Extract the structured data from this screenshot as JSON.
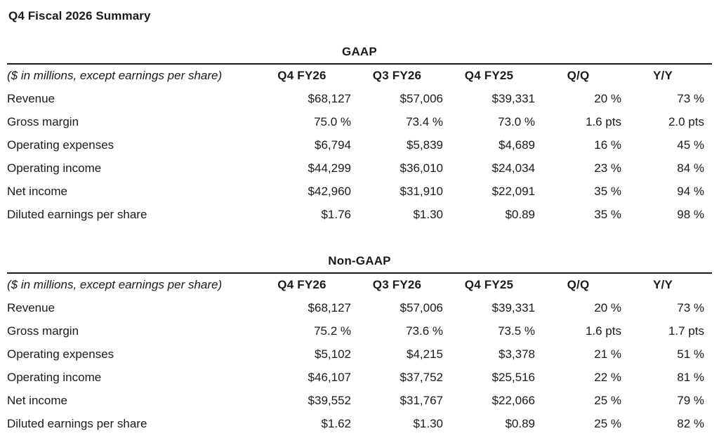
{
  "page": {
    "title": "Q4 Fiscal 2026 Summary"
  },
  "tables": [
    {
      "title": "GAAP",
      "note": "($ in millions, except earnings per share)",
      "columns": [
        "Q4 FY26",
        "Q3 FY26",
        "Q4 FY25",
        "Q/Q",
        "Y/Y"
      ],
      "rows": [
        {
          "label": "Revenue",
          "values": [
            "$68,127",
            "$57,006",
            "$39,331",
            "20 %",
            "73 %"
          ]
        },
        {
          "label": "Gross margin",
          "values": [
            "75.0 %",
            "73.4 %",
            "73.0 %",
            "1.6 pts",
            "2.0 pts"
          ]
        },
        {
          "label": "Operating expenses",
          "values": [
            "$6,794",
            "$5,839",
            "$4,689",
            "16 %",
            "45 %"
          ]
        },
        {
          "label": "Operating income",
          "values": [
            "$44,299",
            "$36,010",
            "$24,034",
            "23 %",
            "84 %"
          ]
        },
        {
          "label": "Net income",
          "values": [
            "$42,960",
            "$31,910",
            "$22,091",
            "35 %",
            "94 %"
          ]
        },
        {
          "label": "Diluted earnings per share",
          "values": [
            "$1.76",
            "$1.30",
            "$0.89",
            "35 %",
            "98 %"
          ]
        }
      ]
    },
    {
      "title": "Non-GAAP",
      "note": "($ in millions, except earnings per share)",
      "columns": [
        "Q4 FY26",
        "Q3 FY26",
        "Q4 FY25",
        "Q/Q",
        "Y/Y"
      ],
      "rows": [
        {
          "label": "Revenue",
          "values": [
            "$68,127",
            "$57,006",
            "$39,331",
            "20 %",
            "73 %"
          ]
        },
        {
          "label": "Gross margin",
          "values": [
            "75.2 %",
            "73.6 %",
            "73.5 %",
            "1.6 pts",
            "1.7 pts"
          ]
        },
        {
          "label": "Operating expenses",
          "values": [
            "$5,102",
            "$4,215",
            "$3,378",
            "21 %",
            "51 %"
          ]
        },
        {
          "label": "Operating income",
          "values": [
            "$46,107",
            "$37,752",
            "$25,516",
            "22 %",
            "81 %"
          ]
        },
        {
          "label": "Net income",
          "values": [
            "$39,552",
            "$31,767",
            "$22,066",
            "25 %",
            "79 %"
          ]
        },
        {
          "label": "Diluted earnings per share",
          "values": [
            "$1.62",
            "$1.30",
            "$0.89",
            "25 %",
            "82 %"
          ]
        }
      ]
    }
  ]
}
